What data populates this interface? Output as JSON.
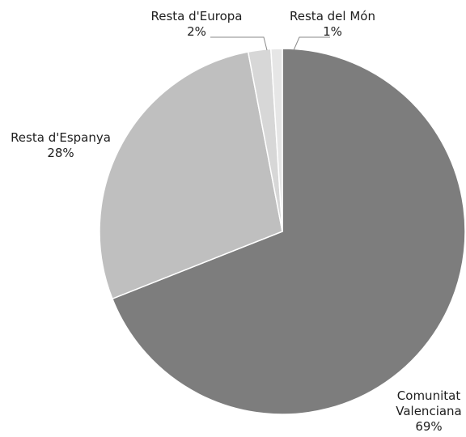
{
  "chart_data": {
    "type": "pie",
    "title": "",
    "slices": [
      {
        "label": [
          "Comunitat",
          "Valenciana"
        ],
        "value": 69,
        "value_label": "69%",
        "color": "#7d7d7d"
      },
      {
        "label": [
          "Resta d'Espanya"
        ],
        "value": 28,
        "value_label": "28%",
        "color": "#bfbfbf"
      },
      {
        "label": [
          "Resta d'Europa"
        ],
        "value": 2,
        "value_label": "2%",
        "color": "#d7d7d7"
      },
      {
        "label": [
          "Resta del Món"
        ],
        "value": 1,
        "value_label": "1%",
        "color": "#e6e6e6"
      }
    ],
    "start_direction": "top",
    "order": "clockwise",
    "legend": "none"
  }
}
